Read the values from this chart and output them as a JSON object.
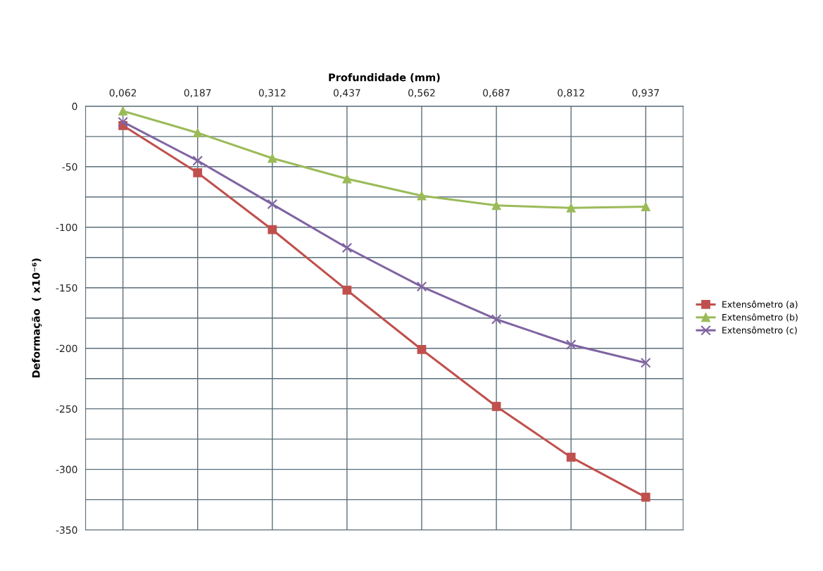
{
  "chart_data": {
    "type": "line",
    "xlabel": "Profundidade (mm)",
    "ylabel": "Deformação  ( x10⁻⁶)",
    "categories": [
      "0,062",
      "0,187",
      "0,312",
      "0,437",
      "0,562",
      "0,687",
      "0,812",
      "0,937"
    ],
    "series": [
      {
        "name": "Extensômetro (a)",
        "color": "#c0504d",
        "marker": "square",
        "values": [
          -16,
          -55,
          -102,
          -152,
          -201,
          -248,
          -290,
          -323
        ]
      },
      {
        "name": "Extensômetro (b)",
        "color": "#9bbb59",
        "marker": "triangle",
        "values": [
          -4,
          -22,
          -43,
          -60,
          -74,
          -82,
          -84,
          -83
        ]
      },
      {
        "name": "Extensômetro (c)",
        "color": "#8064a2",
        "marker": "cross",
        "values": [
          -13,
          -45,
          -81,
          -117,
          -149,
          -176,
          -197,
          -212
        ]
      }
    ],
    "ylim": [
      -350,
      0
    ],
    "yticks": [
      -350,
      {
        "value": -325,
        "label": null
      },
      -300,
      {
        "value": -275,
        "label": null
      },
      -250,
      {
        "value": -225,
        "label": null
      },
      -200,
      {
        "value": -175,
        "label": null
      },
      -150,
      {
        "value": -125,
        "label": null
      },
      -100,
      {
        "value": -75,
        "label": null
      },
      -50,
      {
        "value": -25,
        "label": null
      },
      0
    ],
    "grid": true,
    "legend": "right",
    "line_style": "solid"
  }
}
